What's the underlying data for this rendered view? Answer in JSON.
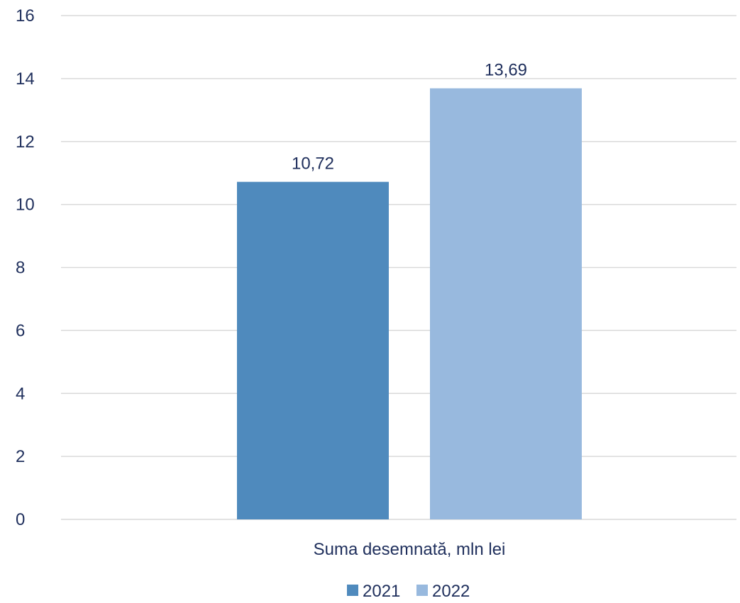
{
  "chart_data": {
    "type": "bar",
    "categories": [
      "Suma desemnată, mln lei"
    ],
    "series": [
      {
        "name": "2021",
        "values": [
          10.72
        ],
        "labels": [
          "10,72"
        ],
        "color": "#4f8abd"
      },
      {
        "name": "2022",
        "values": [
          13.69
        ],
        "labels": [
          "13,69"
        ],
        "color": "#98b9de"
      }
    ],
    "ylim": [
      0,
      16
    ],
    "yticks": [
      0,
      2,
      4,
      6,
      8,
      10,
      12,
      14,
      16
    ],
    "grid": true,
    "legend_position": "bottom",
    "title": "",
    "xlabel": "",
    "ylabel": ""
  }
}
